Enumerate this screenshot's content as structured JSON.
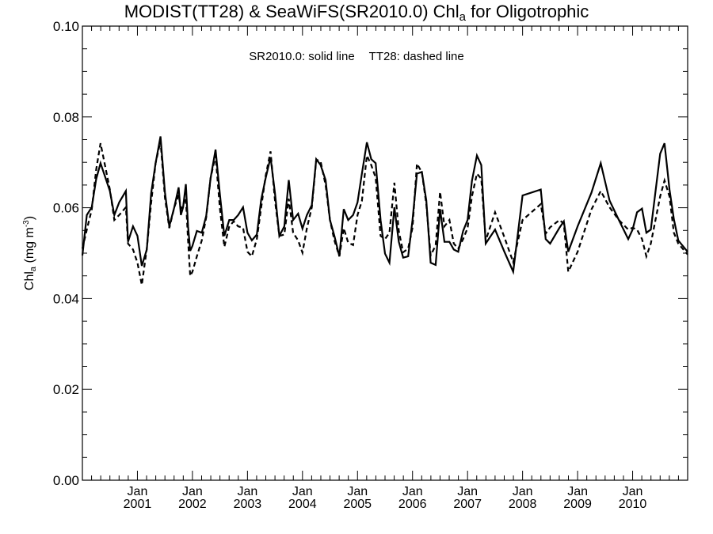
{
  "chart_data": {
    "type": "line",
    "title": {
      "prefix": "MODIST(TT28) & SeaWiFS(SR2010.0)  Chl",
      "subscript": "a",
      "suffix": " for Oligotrophic"
    },
    "ylabel": {
      "main": "Chl",
      "subscript": "a",
      "unit_prefix": " (mg m",
      "unit_superscript": "-3",
      "unit_suffix": ")"
    },
    "annotation": {
      "solid": "SR2010.0: solid line",
      "dashed": "TT28: dashed line"
    },
    "ylim": [
      0.0,
      0.1
    ],
    "xlim": [
      2000.0,
      2011.0
    ],
    "y_ticks": [
      {
        "value": 0.0,
        "label": "0.00"
      },
      {
        "value": 0.02,
        "label": "0.02"
      },
      {
        "value": 0.04,
        "label": "0.04"
      },
      {
        "value": 0.06,
        "label": "0.06"
      },
      {
        "value": 0.08,
        "label": "0.08"
      },
      {
        "value": 0.1,
        "label": "0.10"
      }
    ],
    "x_ticks": [
      {
        "value": 2001,
        "month": "Jan",
        "year": "2001"
      },
      {
        "value": 2002,
        "month": "Jan",
        "year": "2002"
      },
      {
        "value": 2003,
        "month": "Jan",
        "year": "2003"
      },
      {
        "value": 2004,
        "month": "Jan",
        "year": "2004"
      },
      {
        "value": 2005,
        "month": "Jan",
        "year": "2005"
      },
      {
        "value": 2006,
        "month": "Jan",
        "year": "2006"
      },
      {
        "value": 2007,
        "month": "Jan",
        "year": "2007"
      },
      {
        "value": 2008,
        "month": "Jan",
        "year": "2008"
      },
      {
        "value": 2009,
        "month": "Jan",
        "year": "2009"
      },
      {
        "value": 2010,
        "month": "Jan",
        "year": "2010"
      }
    ],
    "series": [
      {
        "style": "solid",
        "points": [
          [
            2000.0,
            0.0495
          ],
          [
            2000.08,
            0.0584
          ],
          [
            2000.17,
            0.0601
          ],
          [
            2000.25,
            0.0663
          ],
          [
            2000.33,
            0.0698
          ],
          [
            2000.5,
            0.0637
          ],
          [
            2000.58,
            0.0584
          ],
          [
            2000.67,
            0.0612
          ],
          [
            2000.79,
            0.0637
          ],
          [
            2000.83,
            0.0525
          ],
          [
            2000.92,
            0.0559
          ],
          [
            2001.0,
            0.0538
          ],
          [
            2001.08,
            0.0472
          ],
          [
            2001.17,
            0.0508
          ],
          [
            2001.25,
            0.0632
          ],
          [
            2001.33,
            0.0698
          ],
          [
            2001.42,
            0.0757
          ],
          [
            2001.5,
            0.0634
          ],
          [
            2001.58,
            0.0559
          ],
          [
            2001.67,
            0.0601
          ],
          [
            2001.75,
            0.0645
          ],
          [
            2001.79,
            0.0584
          ],
          [
            2001.83,
            0.0601
          ],
          [
            2001.88,
            0.0652
          ],
          [
            2001.92,
            0.0559
          ],
          [
            2001.96,
            0.0505
          ],
          [
            2002.0,
            0.0516
          ],
          [
            2002.08,
            0.0549
          ],
          [
            2002.17,
            0.0545
          ],
          [
            2002.25,
            0.0582
          ],
          [
            2002.33,
            0.0665
          ],
          [
            2002.42,
            0.0728
          ],
          [
            2002.5,
            0.0629
          ],
          [
            2002.58,
            0.0538
          ],
          [
            2002.67,
            0.0573
          ],
          [
            2002.75,
            0.0573
          ],
          [
            2002.83,
            0.0584
          ],
          [
            2002.92,
            0.0601
          ],
          [
            2003.0,
            0.0545
          ],
          [
            2003.08,
            0.0528
          ],
          [
            2003.17,
            0.0541
          ],
          [
            2003.25,
            0.0618
          ],
          [
            2003.33,
            0.0665
          ],
          [
            2003.42,
            0.0711
          ],
          [
            2003.5,
            0.0632
          ],
          [
            2003.58,
            0.0538
          ],
          [
            2003.67,
            0.0559
          ],
          [
            2003.75,
            0.0661
          ],
          [
            2003.83,
            0.0573
          ],
          [
            2003.92,
            0.0587
          ],
          [
            2004.0,
            0.0554
          ],
          [
            2004.08,
            0.0584
          ],
          [
            2004.17,
            0.0606
          ],
          [
            2004.25,
            0.0707
          ],
          [
            2004.33,
            0.0694
          ],
          [
            2004.42,
            0.0661
          ],
          [
            2004.5,
            0.0573
          ],
          [
            2004.58,
            0.0538
          ],
          [
            2004.67,
            0.0493
          ],
          [
            2004.75,
            0.0597
          ],
          [
            2004.83,
            0.0573
          ],
          [
            2004.92,
            0.0584
          ],
          [
            2005.0,
            0.0612
          ],
          [
            2005.08,
            0.0675
          ],
          [
            2005.17,
            0.0744
          ],
          [
            2005.25,
            0.0707
          ],
          [
            2005.33,
            0.0698
          ],
          [
            2005.42,
            0.0573
          ],
          [
            2005.5,
            0.0499
          ],
          [
            2005.58,
            0.0479
          ],
          [
            2005.67,
            0.0601
          ],
          [
            2005.75,
            0.0525
          ],
          [
            2005.83,
            0.049
          ],
          [
            2005.92,
            0.0493
          ],
          [
            2006.0,
            0.0573
          ],
          [
            2006.08,
            0.0675
          ],
          [
            2006.17,
            0.0679
          ],
          [
            2006.25,
            0.0616
          ],
          [
            2006.33,
            0.0479
          ],
          [
            2006.42,
            0.0474
          ],
          [
            2006.5,
            0.0597
          ],
          [
            2006.58,
            0.0525
          ],
          [
            2006.67,
            0.0525
          ],
          [
            2006.75,
            0.0508
          ],
          [
            2006.83,
            0.0503
          ],
          [
            2006.92,
            0.0549
          ],
          [
            2007.0,
            0.0573
          ],
          [
            2007.08,
            0.0659
          ],
          [
            2007.17,
            0.0715
          ],
          [
            2007.25,
            0.0694
          ],
          [
            2007.33,
            0.0521
          ],
          [
            2007.5,
            0.0552
          ],
          [
            2007.67,
            0.0503
          ],
          [
            2007.83,
            0.0459
          ],
          [
            2008.0,
            0.0627
          ],
          [
            2008.33,
            0.064
          ],
          [
            2008.42,
            0.0531
          ],
          [
            2008.5,
            0.0521
          ],
          [
            2008.67,
            0.0556
          ],
          [
            2008.75,
            0.057
          ],
          [
            2008.83,
            0.0503
          ],
          [
            2009.0,
            0.0559
          ],
          [
            2009.25,
            0.0633
          ],
          [
            2009.42,
            0.0698
          ],
          [
            2009.58,
            0.0616
          ],
          [
            2009.75,
            0.0573
          ],
          [
            2009.92,
            0.0531
          ],
          [
            2010.0,
            0.0552
          ],
          [
            2010.08,
            0.059
          ],
          [
            2010.17,
            0.0598
          ],
          [
            2010.25,
            0.0545
          ],
          [
            2010.33,
            0.0552
          ],
          [
            2010.5,
            0.0719
          ],
          [
            2010.58,
            0.0742
          ],
          [
            2010.67,
            0.064
          ],
          [
            2010.75,
            0.0575
          ],
          [
            2010.83,
            0.0528
          ],
          [
            2011.0,
            0.0503
          ]
        ]
      },
      {
        "style": "dashed",
        "points": [
          [
            2000.0,
            0.051
          ],
          [
            2000.08,
            0.0552
          ],
          [
            2000.17,
            0.0596
          ],
          [
            2000.25,
            0.0684
          ],
          [
            2000.33,
            0.0742
          ],
          [
            2000.5,
            0.064
          ],
          [
            2000.58,
            0.0573
          ],
          [
            2000.67,
            0.0584
          ],
          [
            2000.79,
            0.0601
          ],
          [
            2000.83,
            0.0521
          ],
          [
            2000.92,
            0.0508
          ],
          [
            2001.0,
            0.0479
          ],
          [
            2001.08,
            0.043
          ],
          [
            2001.17,
            0.051
          ],
          [
            2001.25,
            0.0611
          ],
          [
            2001.33,
            0.0698
          ],
          [
            2001.42,
            0.0747
          ],
          [
            2001.5,
            0.0622
          ],
          [
            2001.58,
            0.0555
          ],
          [
            2001.67,
            0.0601
          ],
          [
            2001.75,
            0.0628
          ],
          [
            2001.79,
            0.0598
          ],
          [
            2001.83,
            0.0606
          ],
          [
            2001.88,
            0.0622
          ],
          [
            2001.92,
            0.0528
          ],
          [
            2001.96,
            0.045
          ],
          [
            2002.0,
            0.0459
          ],
          [
            2002.08,
            0.0493
          ],
          [
            2002.17,
            0.0528
          ],
          [
            2002.25,
            0.0579
          ],
          [
            2002.33,
            0.0665
          ],
          [
            2002.42,
            0.0715
          ],
          [
            2002.5,
            0.0598
          ],
          [
            2002.58,
            0.0514
          ],
          [
            2002.67,
            0.0559
          ],
          [
            2002.75,
            0.057
          ],
          [
            2002.83,
            0.0559
          ],
          [
            2002.92,
            0.0556
          ],
          [
            2003.0,
            0.0503
          ],
          [
            2003.08,
            0.0493
          ],
          [
            2003.17,
            0.0531
          ],
          [
            2003.25,
            0.0601
          ],
          [
            2003.33,
            0.067
          ],
          [
            2003.42,
            0.0724
          ],
          [
            2003.5,
            0.0616
          ],
          [
            2003.58,
            0.0538
          ],
          [
            2003.67,
            0.0541
          ],
          [
            2003.75,
            0.062
          ],
          [
            2003.83,
            0.0545
          ],
          [
            2003.92,
            0.0528
          ],
          [
            2004.0,
            0.0501
          ],
          [
            2004.08,
            0.0555
          ],
          [
            2004.17,
            0.0601
          ],
          [
            2004.25,
            0.0706
          ],
          [
            2004.33,
            0.0702
          ],
          [
            2004.42,
            0.065
          ],
          [
            2004.5,
            0.0573
          ],
          [
            2004.58,
            0.0528
          ],
          [
            2004.67,
            0.0493
          ],
          [
            2004.75,
            0.0555
          ],
          [
            2004.83,
            0.0523
          ],
          [
            2004.92,
            0.0518
          ],
          [
            2005.0,
            0.0584
          ],
          [
            2005.08,
            0.0615
          ],
          [
            2005.17,
            0.0715
          ],
          [
            2005.25,
            0.0694
          ],
          [
            2005.33,
            0.0666
          ],
          [
            2005.42,
            0.0538
          ],
          [
            2005.5,
            0.0531
          ],
          [
            2005.58,
            0.0545
          ],
          [
            2005.67,
            0.0655
          ],
          [
            2005.75,
            0.0549
          ],
          [
            2005.83,
            0.0502
          ],
          [
            2005.92,
            0.051
          ],
          [
            2006.0,
            0.0556
          ],
          [
            2006.08,
            0.0697
          ],
          [
            2006.17,
            0.0678
          ],
          [
            2006.25,
            0.0608
          ],
          [
            2006.33,
            0.0495
          ],
          [
            2006.42,
            0.0517
          ],
          [
            2006.5,
            0.0635
          ],
          [
            2006.58,
            0.0559
          ],
          [
            2006.67,
            0.0573
          ],
          [
            2006.75,
            0.0521
          ],
          [
            2006.83,
            0.051
          ],
          [
            2006.92,
            0.0531
          ],
          [
            2007.0,
            0.0555
          ],
          [
            2007.08,
            0.0625
          ],
          [
            2007.17,
            0.0675
          ],
          [
            2007.25,
            0.0664
          ],
          [
            2007.33,
            0.0528
          ],
          [
            2007.5,
            0.059
          ],
          [
            2007.67,
            0.0535
          ],
          [
            2007.83,
            0.048
          ],
          [
            2008.0,
            0.0573
          ],
          [
            2008.33,
            0.0608
          ],
          [
            2008.42,
            0.0543
          ],
          [
            2008.5,
            0.0557
          ],
          [
            2008.67,
            0.0573
          ],
          [
            2008.75,
            0.0565
          ],
          [
            2008.83,
            0.0459
          ],
          [
            2009.0,
            0.0503
          ],
          [
            2009.25,
            0.0596
          ],
          [
            2009.42,
            0.0637
          ],
          [
            2009.58,
            0.0601
          ],
          [
            2009.75,
            0.0573
          ],
          [
            2009.92,
            0.0552
          ],
          [
            2010.0,
            0.0556
          ],
          [
            2010.08,
            0.0552
          ],
          [
            2010.17,
            0.0531
          ],
          [
            2010.25,
            0.0493
          ],
          [
            2010.33,
            0.0521
          ],
          [
            2010.5,
            0.0625
          ],
          [
            2010.58,
            0.066
          ],
          [
            2010.67,
            0.0625
          ],
          [
            2010.75,
            0.0545
          ],
          [
            2010.83,
            0.0521
          ],
          [
            2011.0,
            0.0497
          ]
        ]
      }
    ]
  }
}
